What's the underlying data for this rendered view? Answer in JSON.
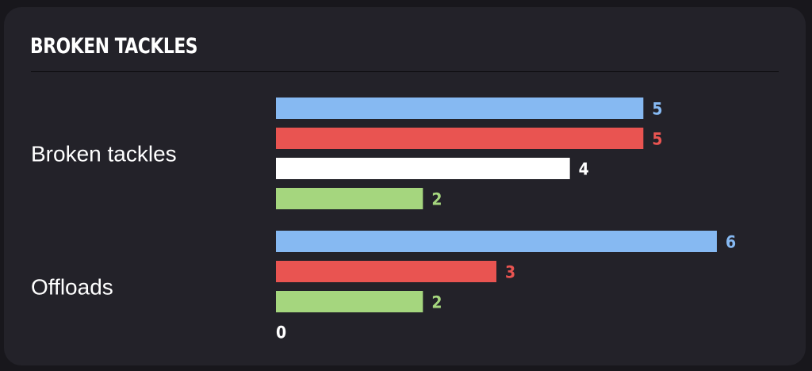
{
  "card": {
    "title": "BROKEN TACKLES"
  },
  "chart_data": {
    "type": "bar",
    "orientation": "horizontal",
    "title": "BROKEN TACKLES",
    "categories": [
      "Broken tackles",
      "Offloads"
    ],
    "series": [
      {
        "color": "#86b9f2",
        "values": [
          5,
          6
        ]
      },
      {
        "color": "#e95451",
        "values": [
          5,
          3
        ]
      },
      {
        "color": "#ffffff",
        "values": [
          4,
          0
        ]
      },
      {
        "color": "#a5d67e",
        "values": [
          2,
          2
        ]
      }
    ],
    "xlim": [
      0,
      6
    ],
    "grid": false,
    "legend": "none"
  }
}
